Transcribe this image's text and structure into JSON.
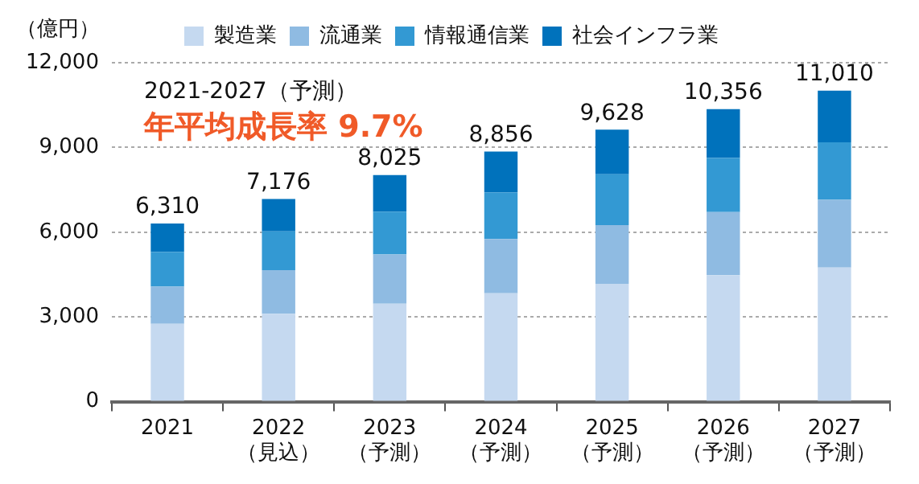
{
  "chart_data": {
    "type": "bar",
    "stacked": true,
    "ylabel": "（億円）",
    "categories": [
      "2021",
      "2022\n（見込）",
      "2023\n（予測）",
      "2024\n（予測）",
      "2025\n（予測）",
      "2026\n（予測）",
      "2027\n（予測）"
    ],
    "series": [
      {
        "name": "製造業",
        "color": "#c5d9f0",
        "values": [
          2760,
          3110,
          3470,
          3840,
          4170,
          4480,
          4750
        ]
      },
      {
        "name": "流通業",
        "color": "#8fbbe2",
        "values": [
          1310,
          1550,
          1740,
          1920,
          2080,
          2230,
          2400
        ]
      },
      {
        "name": "情報通信業",
        "color": "#3399d3",
        "values": [
          1230,
          1370,
          1510,
          1650,
          1800,
          1920,
          2030
        ]
      },
      {
        "name": "社会インフラ業",
        "color": "#0072bc",
        "values": [
          1010,
          1146,
          1305,
          1446,
          1578,
          1726,
          1830
        ]
      }
    ],
    "totals": [
      "6,310",
      "7,176",
      "8,025",
      "8,856",
      "9,628",
      "10,356",
      "11,010"
    ],
    "annotations": [
      "2021-2027（予測）",
      "年平均成長率 9.7%"
    ],
    "ylim": [
      0,
      12000
    ],
    "yticks": [
      {
        "value": 0,
        "label": "0"
      },
      {
        "value": 3000,
        "label": "3,000"
      },
      {
        "value": 6000,
        "label": "6,000"
      },
      {
        "value": 9000,
        "label": "9,000"
      },
      {
        "value": 12000,
        "label": "12,000"
      }
    ],
    "grid": "y",
    "legend": "top"
  }
}
